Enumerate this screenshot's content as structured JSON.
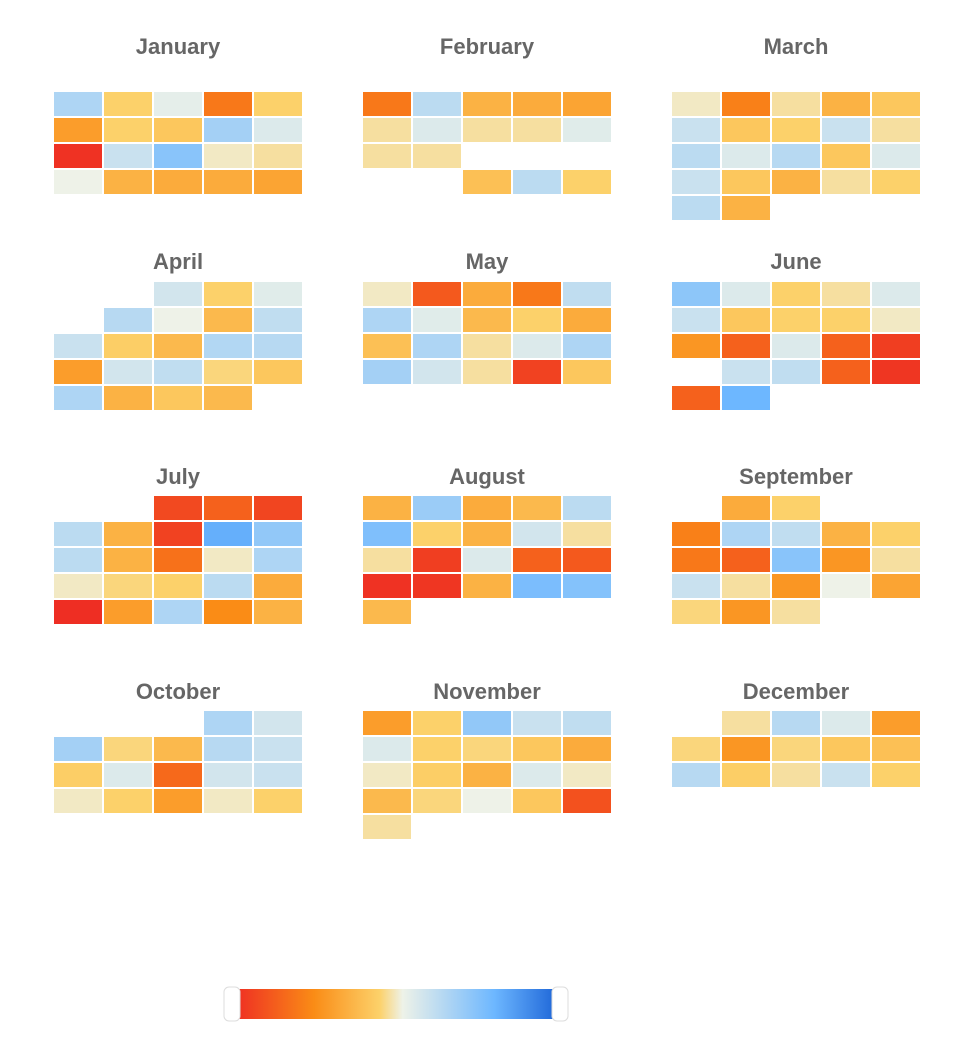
{
  "chart_data": {
    "type": "heatmap",
    "layout": "calendar grid of 12 months, 4 rows x 3 columns, 5 cells per week row",
    "color_scale": [
      "#ee2a24",
      "#fa8c16",
      "#fcd16a",
      "#eef2e8",
      "#6db7ff",
      "#1a62d6"
    ],
    "value_range": [
      0,
      1
    ],
    "months": [
      {
        "name": "January",
        "rows": [
          [
            0.66,
            0.45,
            0.54,
            0.2,
            0.45
          ],
          [
            0.3,
            0.45,
            0.42,
            0.68,
            0.56
          ],
          [
            0.02,
            0.6,
            0.74,
            0.5,
            0.48
          ],
          [
            0.52,
            0.36,
            0.34,
            0.34,
            0.32
          ]
        ]
      },
      {
        "name": "February",
        "rows": [
          [
            0.2,
            0.63,
            0.36,
            0.34,
            0.32
          ],
          [
            0.48,
            0.56,
            0.48,
            0.48,
            0.55
          ],
          [
            0.48,
            0.48,
            null,
            null,
            null
          ],
          [
            null,
            null,
            0.4,
            0.63,
            0.45
          ]
        ]
      },
      {
        "name": "March",
        "rows": [
          [
            0.5,
            0.22,
            0.48,
            0.36,
            0.42
          ],
          [
            0.6,
            0.42,
            0.45,
            0.6,
            0.48
          ],
          [
            0.63,
            0.56,
            0.64,
            0.42,
            0.56
          ],
          [
            0.6,
            0.42,
            0.36,
            0.48,
            0.45
          ],
          [
            0.63,
            0.36,
            null,
            null,
            null
          ]
        ]
      },
      {
        "name": "April",
        "rows": [
          [
            null,
            null,
            0.58,
            0.45,
            0.55
          ],
          [
            null,
            0.64,
            0.52,
            0.38,
            0.62
          ],
          [
            0.6,
            0.44,
            0.38,
            0.65,
            0.64
          ],
          [
            0.3,
            0.58,
            0.62,
            0.46,
            0.42
          ],
          [
            0.66,
            0.36,
            0.42,
            0.38,
            null
          ]
        ]
      },
      {
        "name": "May",
        "rows": [
          [
            0.5,
            0.12,
            0.34,
            0.2,
            0.62
          ],
          [
            0.66,
            0.55,
            0.38,
            0.45,
            0.34
          ],
          [
            0.4,
            0.66,
            0.48,
            0.56,
            0.66
          ],
          [
            0.68,
            0.58,
            0.48,
            0.06,
            0.42
          ]
        ]
      },
      {
        "name": "June",
        "rows": [
          [
            0.73,
            0.56,
            0.45,
            0.48,
            0.56
          ],
          [
            0.6,
            0.42,
            0.45,
            0.45,
            0.5
          ],
          [
            0.28,
            0.14,
            0.56,
            0.14,
            0.05
          ],
          [
            null,
            0.6,
            0.62,
            0.14,
            0.03
          ],
          [
            0.14,
            0.8,
            null,
            null,
            null
          ]
        ]
      },
      {
        "name": "July",
        "rows": [
          [
            null,
            null,
            0.08,
            0.14,
            0.07
          ],
          [
            0.63,
            0.36,
            0.06,
            0.82,
            0.72
          ],
          [
            0.63,
            0.36,
            0.18,
            0.5,
            0.66
          ],
          [
            0.5,
            0.46,
            0.45,
            0.63,
            0.34
          ],
          [
            0.01,
            0.3,
            0.66,
            0.25,
            0.36
          ]
        ]
      },
      {
        "name": "August",
        "rows": [
          [
            0.36,
            0.7,
            0.34,
            0.38,
            0.63
          ],
          [
            0.76,
            0.45,
            0.36,
            0.58,
            0.48
          ],
          [
            0.48,
            0.05,
            0.56,
            0.14,
            0.12
          ],
          [
            0.02,
            0.03,
            0.36,
            0.77,
            0.75
          ],
          [
            0.38,
            null,
            null,
            null,
            null
          ]
        ]
      },
      {
        "name": "September",
        "rows": [
          [
            null,
            0.34,
            0.45,
            null,
            null
          ],
          [
            0.22,
            0.66,
            0.62,
            0.36,
            0.45
          ],
          [
            0.2,
            0.14,
            0.74,
            0.28,
            0.48
          ],
          [
            0.6,
            0.48,
            0.28,
            0.52,
            0.32
          ],
          [
            0.46,
            0.28,
            0.48,
            null,
            null
          ]
        ]
      },
      {
        "name": "October",
        "rows": [
          [
            null,
            null,
            null,
            0.66,
            0.58
          ],
          [
            0.68,
            0.46,
            0.38,
            0.64,
            0.6
          ],
          [
            0.44,
            0.56,
            0.16,
            0.58,
            0.6
          ],
          [
            0.5,
            0.45,
            0.3,
            0.5,
            0.45
          ]
        ]
      },
      {
        "name": "November",
        "rows": [
          [
            0.3,
            0.45,
            0.72,
            0.6,
            0.62
          ],
          [
            0.56,
            0.45,
            0.46,
            0.42,
            0.34
          ],
          [
            0.5,
            0.44,
            0.36,
            0.56,
            0.5
          ],
          [
            0.38,
            0.46,
            0.52,
            0.42,
            0.1
          ],
          [
            0.48,
            null,
            null,
            null,
            null
          ]
        ]
      },
      {
        "name": "December",
        "rows": [
          [
            null,
            0.48,
            0.64,
            0.56,
            0.3
          ],
          [
            0.46,
            0.28,
            0.46,
            0.42,
            0.4
          ],
          [
            0.64,
            0.44,
            0.48,
            0.6,
            0.45
          ]
        ]
      }
    ],
    "legend": {
      "type": "continuous",
      "placement": "bottom-center",
      "range": [
        0,
        1
      ]
    }
  }
}
